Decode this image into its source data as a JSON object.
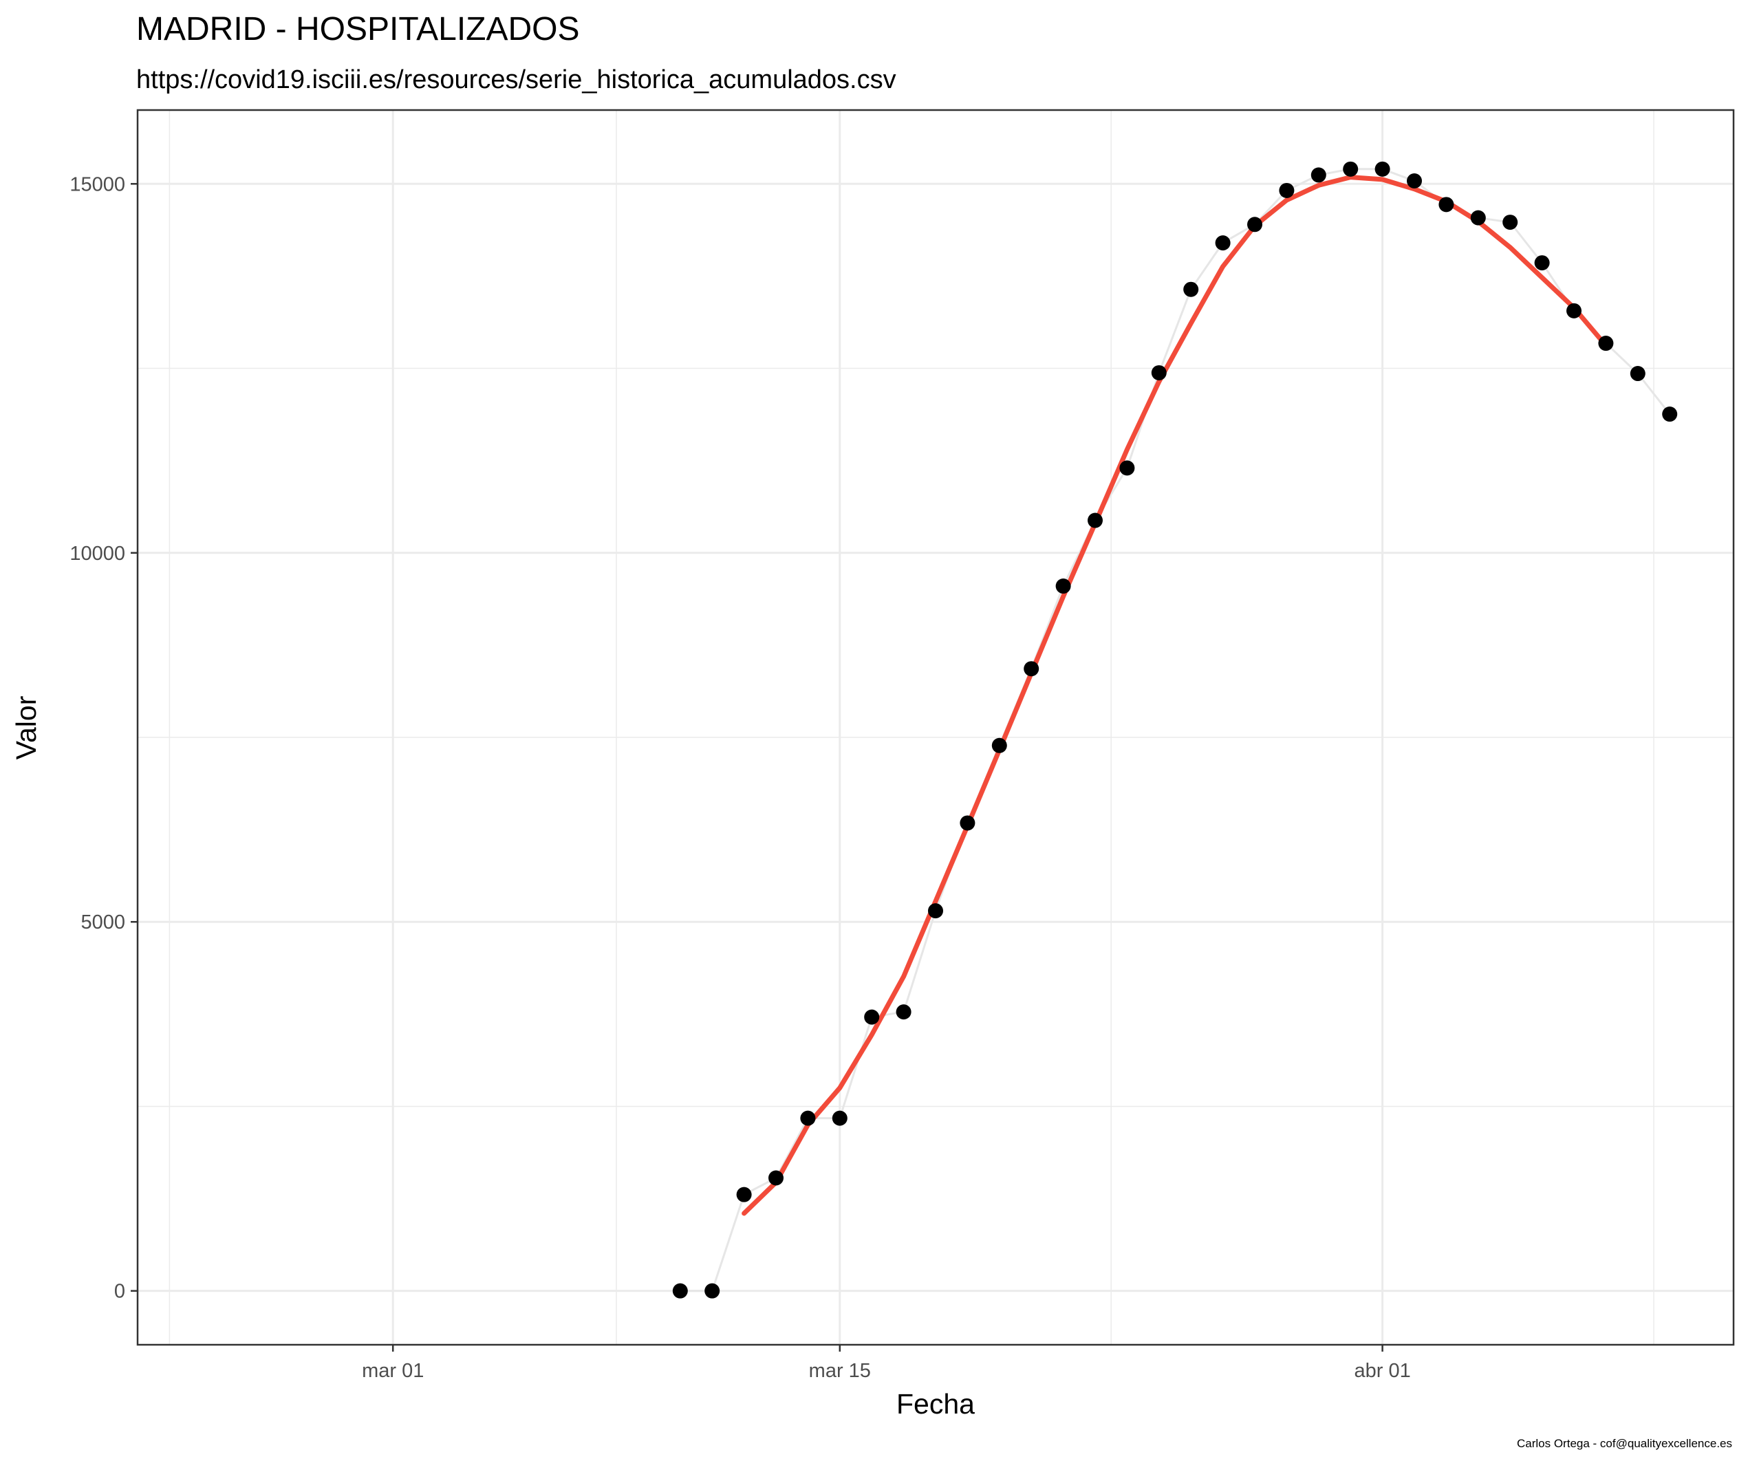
{
  "chart_data": {
    "type": "line",
    "title": "MADRID - HOSPITALIZADOS",
    "subtitle": "https://covid19.isciii.es/resources/serie_historica_acumulados.csv",
    "xlabel": "Fecha",
    "ylabel": "Valor",
    "caption": "Carlos Ortega - cof@qualityexcellence.es",
    "x_ticks": [
      {
        "label": "mar 01",
        "date": "2020-03-01"
      },
      {
        "label": "mar 15",
        "date": "2020-03-15"
      },
      {
        "label": "abr 01",
        "date": "2020-04-01"
      }
    ],
    "y_ticks": [
      0,
      5000,
      10000,
      15000
    ],
    "xlim": [
      "2020-02-22",
      "2020-04-12"
    ],
    "ylim": [
      -730,
      16000
    ],
    "grid": true,
    "legend": "none",
    "colors": {
      "points": "#000000",
      "raw_line": "#e6e6e6",
      "smooth_line": "#f24b3a",
      "grid": "#ebebeb",
      "border": "#333333"
    },
    "series": [
      {
        "kind": "points",
        "x": [
          "2020-03-10",
          "2020-03-11",
          "2020-03-12",
          "2020-03-13",
          "2020-03-14",
          "2020-03-15",
          "2020-03-16",
          "2020-03-17",
          "2020-03-18",
          "2020-03-19",
          "2020-03-20",
          "2020-03-21",
          "2020-03-22",
          "2020-03-23",
          "2020-03-24",
          "2020-03-25",
          "2020-03-26",
          "2020-03-27",
          "2020-03-28",
          "2020-03-29",
          "2020-03-30",
          "2020-03-31",
          "2020-04-01",
          "2020-04-02",
          "2020-04-03",
          "2020-04-04",
          "2020-04-05",
          "2020-04-06",
          "2020-04-07",
          "2020-04-08",
          "2020-04-09",
          "2020-04-10"
        ],
        "y": [
          0,
          0,
          1305,
          1530,
          2340,
          2340,
          3710,
          3780,
          5150,
          6340,
          7390,
          8430,
          9550,
          10440,
          11150,
          12440,
          13570,
          14200,
          14450,
          14910,
          15120,
          15200,
          15200,
          15040,
          14720,
          14540,
          14480,
          13930,
          13280,
          12840,
          12430,
          11880
        ]
      },
      {
        "kind": "smooth",
        "x": [
          "2020-03-12",
          "2020-03-13",
          "2020-03-14",
          "2020-03-15",
          "2020-03-16",
          "2020-03-17",
          "2020-03-18",
          "2020-03-19",
          "2020-03-20",
          "2020-03-21",
          "2020-03-22",
          "2020-03-23",
          "2020-03-24",
          "2020-03-25",
          "2020-03-26",
          "2020-03-27",
          "2020-03-28",
          "2020-03-29",
          "2020-03-30",
          "2020-03-31",
          "2020-04-01",
          "2020-04-02",
          "2020-04-03",
          "2020-04-04",
          "2020-04-05",
          "2020-04-06",
          "2020-04-07",
          "2020-04-08"
        ],
        "y": [
          1050,
          1470,
          2250,
          2750,
          3470,
          4260,
          5280,
          6300,
          7330,
          8370,
          9410,
          10400,
          11400,
          12320,
          13110,
          13880,
          14430,
          14780,
          14980,
          15090,
          15060,
          14930,
          14760,
          14490,
          14140,
          13730,
          13320,
          12810
        ]
      }
    ]
  }
}
